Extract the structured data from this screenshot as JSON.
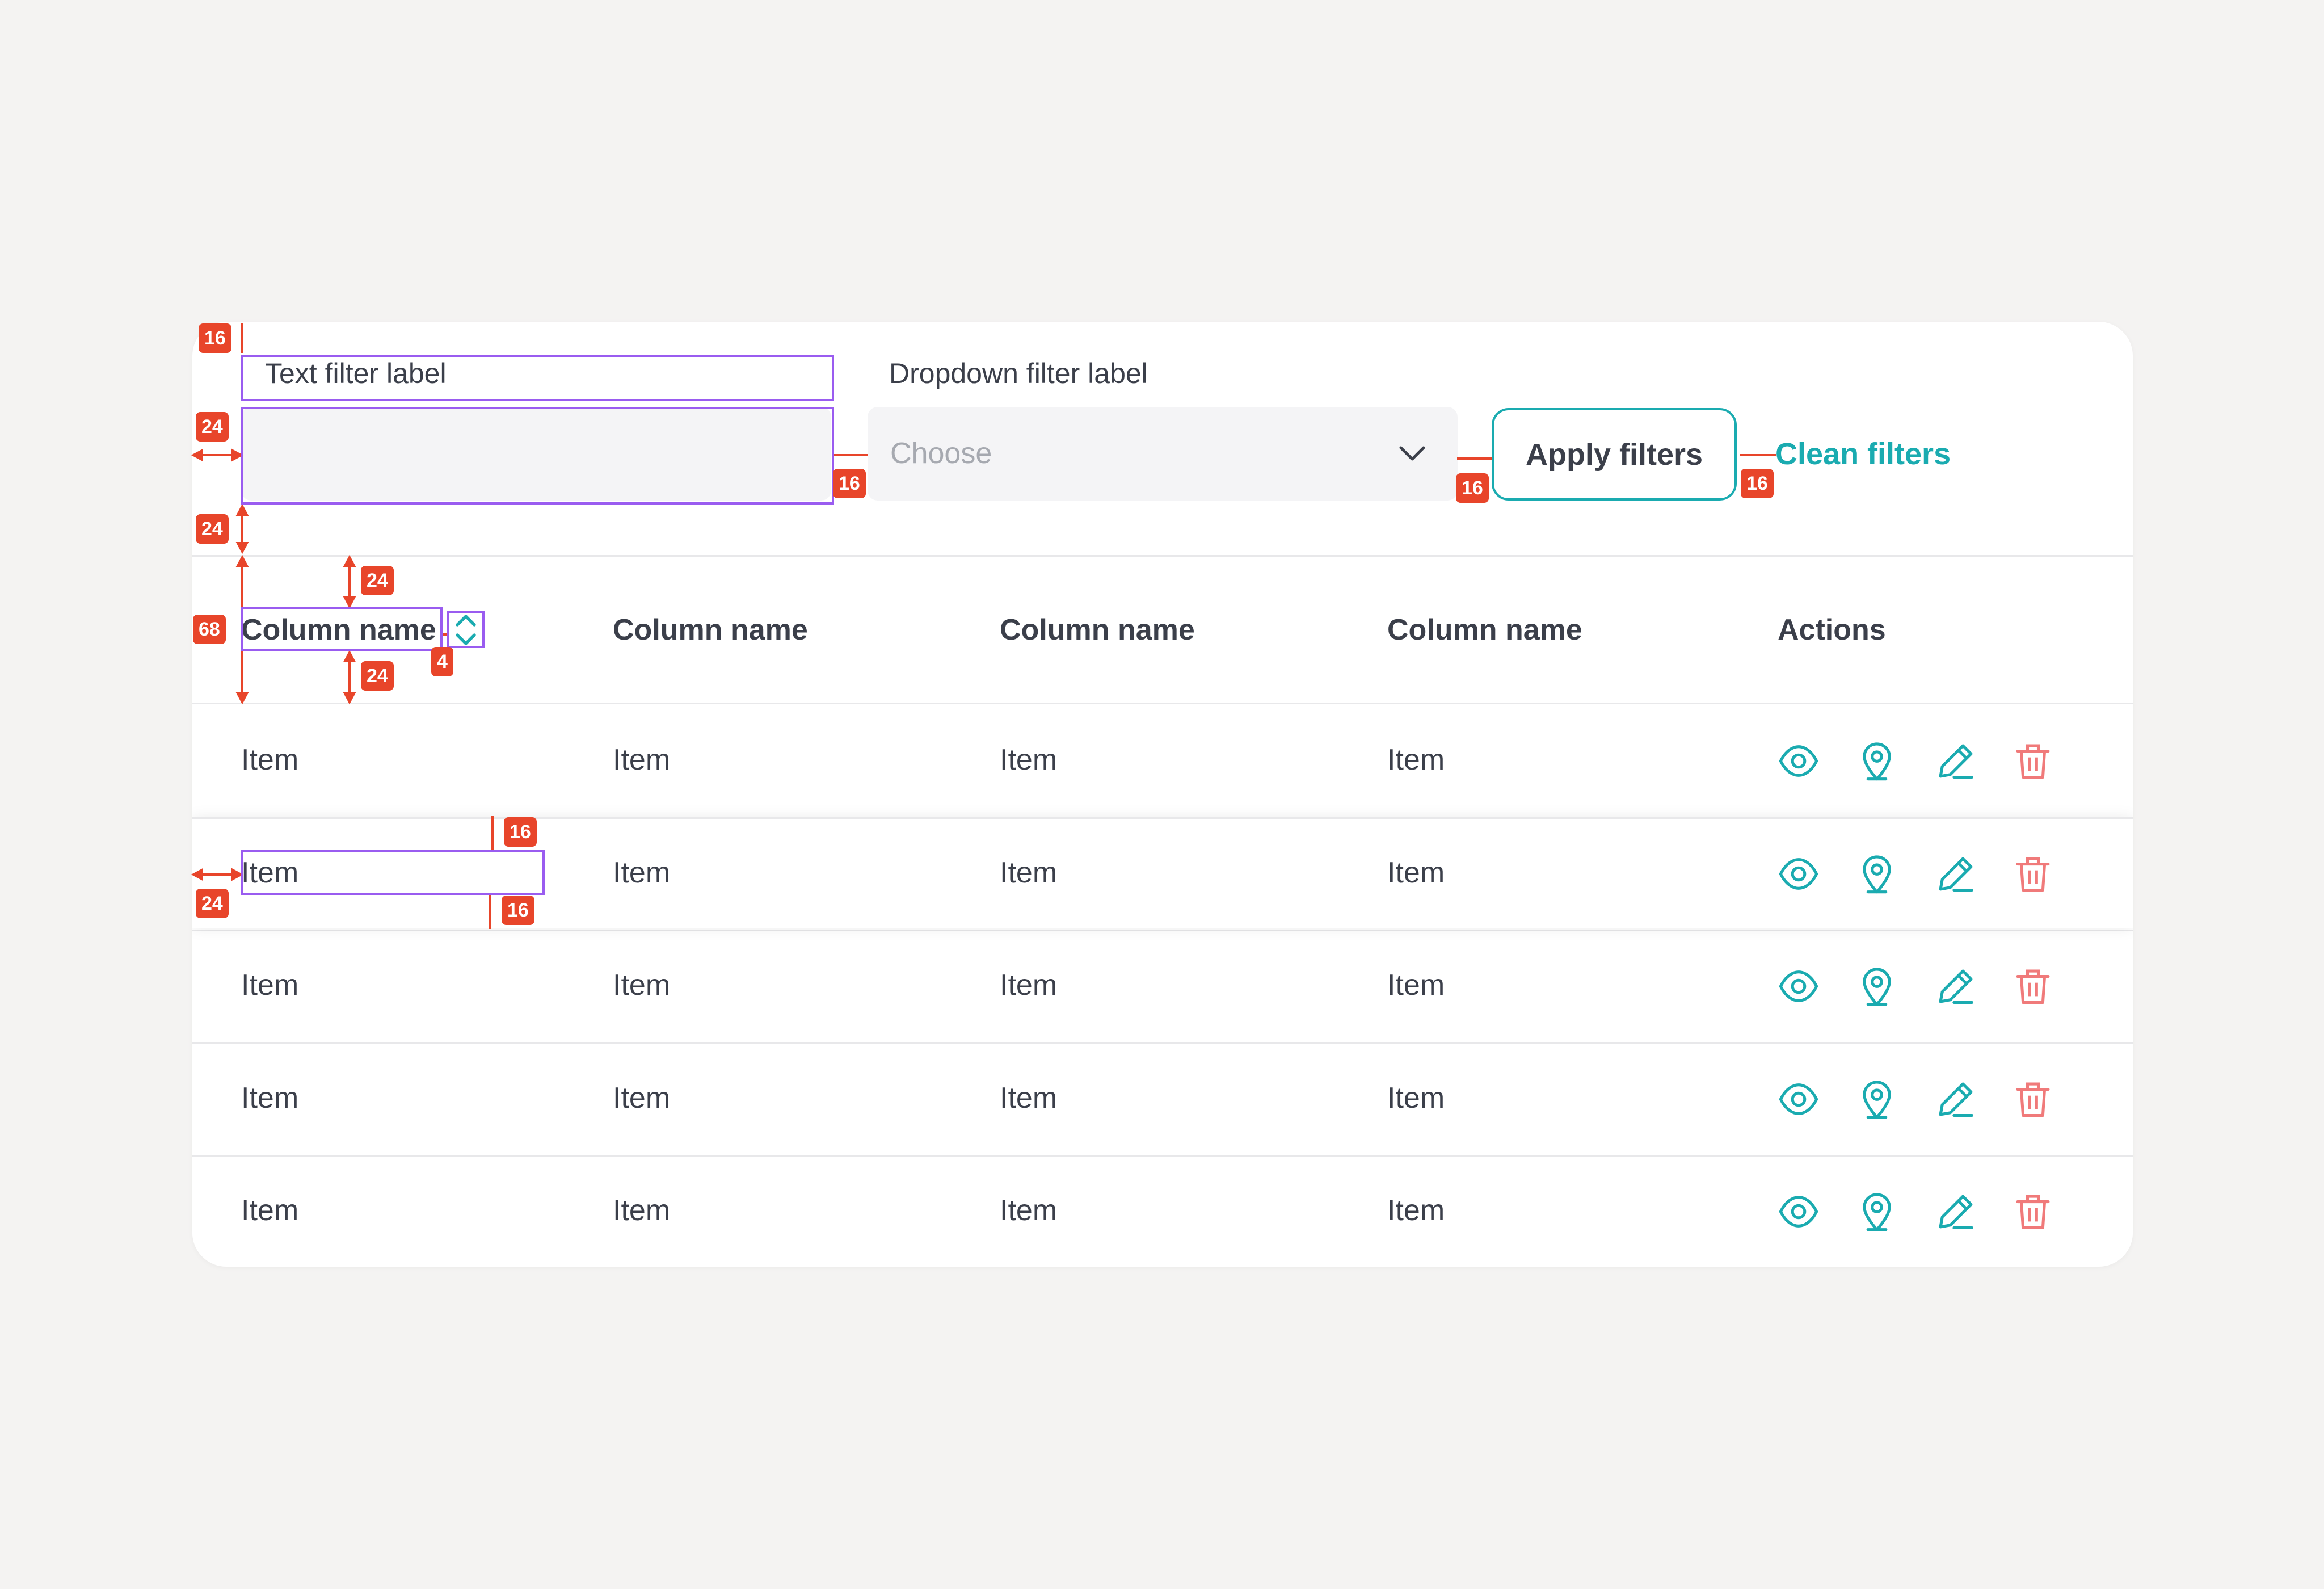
{
  "filters": {
    "text_label": "Text filter label",
    "text_value": "",
    "dropdown_label": "Dropdown filter label",
    "dropdown_placeholder": "Choose",
    "apply_label": "Apply filters",
    "clean_label": "Clean filters"
  },
  "table": {
    "columns": [
      "Column name",
      "Column name",
      "Column name",
      "Column name",
      "Actions"
    ],
    "rows": [
      [
        "Item",
        "Item",
        "Item",
        "Item"
      ],
      [
        "Item",
        "Item",
        "Item",
        "Item"
      ],
      [
        "Item",
        "Item",
        "Item",
        "Item"
      ],
      [
        "Item",
        "Item",
        "Item",
        "Item"
      ],
      [
        "Item",
        "Item",
        "Item",
        "Item"
      ]
    ],
    "actions": [
      "eye-icon",
      "map-pin-icon",
      "pencil-icon",
      "trash-icon"
    ],
    "hovered_row": 1
  },
  "spec_badges": {
    "top_padding": "16",
    "filter_left_padding": "24",
    "filter_bottom_padding": "24",
    "input_gap": "16",
    "select_gap": "16",
    "button_gap": "16",
    "header_top_padding": "24",
    "header_height": "68",
    "header_bottom_padding": "24",
    "sort_gap": "4",
    "row_top_padding": "16",
    "row_left_padding": "24",
    "row_bottom_padding": "16"
  },
  "colors": {
    "accent": "#1aabb0",
    "danger": "#f07a7a",
    "spec_red": "#e8452a",
    "spec_purple": "#9a5cf0",
    "page_background": "#f4f3f2"
  }
}
